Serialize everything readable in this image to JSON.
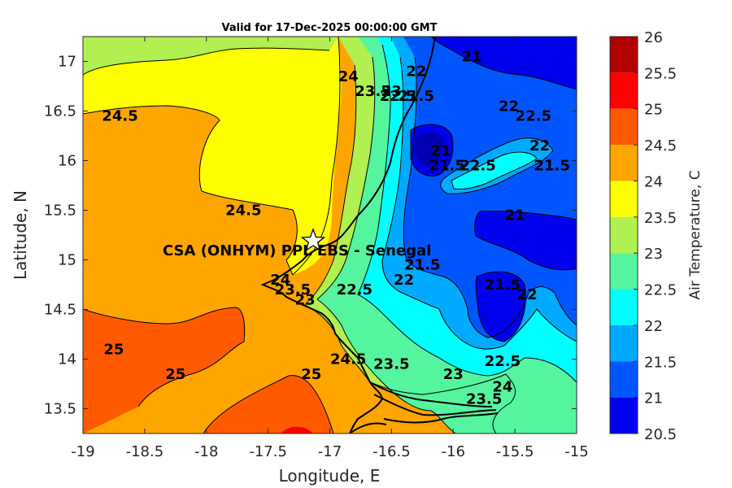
{
  "chart_data": {
    "type": "heatmap",
    "title": "Valid for 17-Dec-2025 00:00:00 GMT",
    "xlabel": "Longitude, E",
    "ylabel": "Latitude, N",
    "xlim": [
      -19,
      -15
    ],
    "ylim": [
      13.25,
      17.25
    ],
    "xticks": [
      "-19",
      "-18.5",
      "-18",
      "-17.5",
      "-17",
      "-16.5",
      "-16",
      "-15.5",
      "-15"
    ],
    "xtick_values": [
      -19,
      -18.5,
      -18,
      -17.5,
      -17,
      -16.5,
      -16,
      -15.5,
      -15
    ],
    "yticks": [
      "17",
      "16.5",
      "16",
      "15.5",
      "15",
      "14.5",
      "14",
      "13.5"
    ],
    "ytick_values": [
      17,
      16.5,
      16,
      15.5,
      15,
      14.5,
      14,
      13.5
    ],
    "colorbar": {
      "label": "Air Temperature, C",
      "ticks": [
        "26",
        "25.5",
        "25",
        "24.5",
        "24",
        "23.5",
        "23",
        "22.5",
        "22",
        "21.5",
        "21",
        "20.5"
      ],
      "levels": [
        {
          "from": 25.5,
          "to": 26,
          "color": "#b00000"
        },
        {
          "from": 25,
          "to": 25.5,
          "color": "#ff0000"
        },
        {
          "from": 24.5,
          "to": 25,
          "color": "#ff5a00"
        },
        {
          "from": 24,
          "to": 24.5,
          "color": "#ffa500"
        },
        {
          "from": 23.5,
          "to": 24,
          "color": "#ffff00"
        },
        {
          "from": 23,
          "to": 23.5,
          "color": "#b0f050"
        },
        {
          "from": 22.5,
          "to": 23,
          "color": "#55f5a0"
        },
        {
          "from": 22,
          "to": 22.5,
          "color": "#00ffff"
        },
        {
          "from": 21.5,
          "to": 22,
          "color": "#00aaff"
        },
        {
          "from": 21,
          "to": 21.5,
          "color": "#0055ff"
        },
        {
          "from": 20.5,
          "to": 21,
          "color": "#0000ee"
        }
      ]
    },
    "site": {
      "name": "CSA (ONHYM) PPL EBS  - Senegal",
      "lon": -17.1,
      "lat": 15.25
    },
    "contour_labels": [
      {
        "text": "24.5",
        "lon": -18.7,
        "lat": 16.45
      },
      {
        "text": "24.5",
        "lon": -17.7,
        "lat": 15.5
      },
      {
        "text": "24",
        "lon": -16.85,
        "lat": 16.85
      },
      {
        "text": "23.5",
        "lon": -16.65,
        "lat": 16.7
      },
      {
        "text": "23",
        "lon": -16.5,
        "lat": 16.7
      },
      {
        "text": "22.5",
        "lon": -16.45,
        "lat": 16.65
      },
      {
        "text": "22",
        "lon": -16.3,
        "lat": 16.9
      },
      {
        "text": "21.5",
        "lon": -16.3,
        "lat": 16.65
      },
      {
        "text": "21",
        "lon": -15.85,
        "lat": 17.05
      },
      {
        "text": "22",
        "lon": -15.55,
        "lat": 16.55
      },
      {
        "text": "22.5",
        "lon": -15.35,
        "lat": 16.45
      },
      {
        "text": "22",
        "lon": -15.3,
        "lat": 16.15
      },
      {
        "text": "21.5",
        "lon": -15.2,
        "lat": 15.95
      },
      {
        "text": "21",
        "lon": -16.1,
        "lat": 16.1
      },
      {
        "text": "21.5",
        "lon": -16.05,
        "lat": 15.95
      },
      {
        "text": "22.5",
        "lon": -15.8,
        "lat": 15.95
      },
      {
        "text": "21",
        "lon": -15.5,
        "lat": 15.45
      },
      {
        "text": "21.5",
        "lon": -16.25,
        "lat": 14.95
      },
      {
        "text": "22",
        "lon": -16.4,
        "lat": 14.8
      },
      {
        "text": "22.5",
        "lon": -16.8,
        "lat": 14.7
      },
      {
        "text": "21.5",
        "lon": -15.6,
        "lat": 14.75
      },
      {
        "text": "22",
        "lon": -15.4,
        "lat": 14.65
      },
      {
        "text": "24",
        "lon": -17.4,
        "lat": 14.8
      },
      {
        "text": "23.5",
        "lon": -17.3,
        "lat": 14.7
      },
      {
        "text": "23",
        "lon": -17.2,
        "lat": 14.6
      },
      {
        "text": "25",
        "lon": -18.75,
        "lat": 14.1
      },
      {
        "text": "25",
        "lon": -18.25,
        "lat": 13.85
      },
      {
        "text": "25",
        "lon": -17.15,
        "lat": 13.85
      },
      {
        "text": "24.5",
        "lon": -16.85,
        "lat": 14.0
      },
      {
        "text": "23.5",
        "lon": -16.5,
        "lat": 13.95
      },
      {
        "text": "23",
        "lon": -16.0,
        "lat": 13.85
      },
      {
        "text": "22.5",
        "lon": -15.6,
        "lat": 13.98
      },
      {
        "text": "23.5",
        "lon": -15.75,
        "lat": 13.6
      },
      {
        "text": "24",
        "lon": -15.6,
        "lat": 13.72
      }
    ]
  }
}
